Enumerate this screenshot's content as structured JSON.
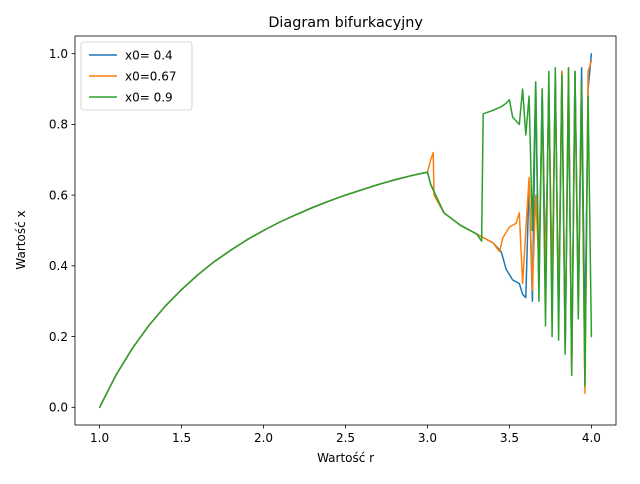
{
  "chart_data": {
    "type": "line",
    "title": "Diagram bifurkacyjny",
    "xlabel": "Wartość r",
    "ylabel": "Wartość x",
    "xlim": [
      0.85,
      4.15
    ],
    "ylim": [
      -0.05,
      1.05
    ],
    "xticks": [
      1.0,
      1.5,
      2.0,
      2.5,
      3.0,
      3.5,
      4.0
    ],
    "xtick_labels": [
      "1.0",
      "1.5",
      "2.0",
      "2.5",
      "3.0",
      "3.5",
      "4.0"
    ],
    "yticks": [
      0.0,
      0.2,
      0.4,
      0.6,
      0.8,
      1.0
    ],
    "ytick_labels": [
      "0.0",
      "0.2",
      "0.4",
      "0.6",
      "0.8",
      "1.0"
    ],
    "grid": false,
    "legend_position": "upper-left",
    "series": [
      {
        "name": "x0= 0.4",
        "color": "#1f77b4",
        "x": [
          1.0,
          1.1,
          1.2,
          1.3,
          1.4,
          1.5,
          1.6,
          1.7,
          1.8,
          1.9,
          2.0,
          2.1,
          2.2,
          2.3,
          2.4,
          2.5,
          2.6,
          2.7,
          2.8,
          2.9,
          3.0,
          3.02,
          3.1,
          3.2,
          3.3,
          3.4,
          3.45,
          3.48,
          3.52,
          3.56,
          3.58,
          3.6,
          3.62,
          3.64,
          3.66,
          3.68,
          3.7,
          3.72,
          3.74,
          3.76,
          3.78,
          3.8,
          3.82,
          3.84,
          3.86,
          3.88,
          3.9,
          3.92,
          3.94,
          3.96,
          3.98,
          4.0
        ],
        "y": [
          0.0,
          0.091,
          0.167,
          0.231,
          0.286,
          0.333,
          0.375,
          0.412,
          0.444,
          0.474,
          0.5,
          0.524,
          0.545,
          0.565,
          0.583,
          0.6,
          0.615,
          0.63,
          0.643,
          0.655,
          0.665,
          0.63,
          0.55,
          0.515,
          0.49,
          0.465,
          0.44,
          0.39,
          0.36,
          0.35,
          0.32,
          0.31,
          0.64,
          0.3,
          0.92,
          0.35,
          0.9,
          0.4,
          0.88,
          0.33,
          0.93,
          0.26,
          0.95,
          0.16,
          0.9,
          0.12,
          0.95,
          0.3,
          0.96,
          0.2,
          0.9,
          1.0
        ]
      },
      {
        "name": "x0=0.67",
        "color": "#ff7f0e",
        "x": [
          1.0,
          1.1,
          1.2,
          1.3,
          1.4,
          1.5,
          1.6,
          1.7,
          1.8,
          1.9,
          2.0,
          2.1,
          2.2,
          2.3,
          2.4,
          2.5,
          2.6,
          2.7,
          2.8,
          2.9,
          3.0,
          3.02,
          3.035,
          3.04,
          3.1,
          3.2,
          3.3,
          3.4,
          3.44,
          3.46,
          3.5,
          3.54,
          3.56,
          3.58,
          3.6,
          3.62,
          3.64,
          3.66,
          3.68,
          3.7,
          3.72,
          3.74,
          3.76,
          3.78,
          3.8,
          3.82,
          3.84,
          3.86,
          3.88,
          3.9,
          3.92,
          3.94,
          3.96,
          3.98,
          4.0
        ],
        "y": [
          0.0,
          0.091,
          0.167,
          0.231,
          0.286,
          0.333,
          0.375,
          0.412,
          0.444,
          0.474,
          0.5,
          0.524,
          0.545,
          0.565,
          0.583,
          0.6,
          0.615,
          0.63,
          0.643,
          0.655,
          0.665,
          0.7,
          0.72,
          0.6,
          0.55,
          0.515,
          0.49,
          0.465,
          0.44,
          0.48,
          0.51,
          0.52,
          0.55,
          0.35,
          0.5,
          0.65,
          0.33,
          0.6,
          0.4,
          0.85,
          0.37,
          0.9,
          0.35,
          0.92,
          0.26,
          0.95,
          0.18,
          0.96,
          0.09,
          0.93,
          0.3,
          0.9,
          0.04,
          0.95,
          0.98
        ]
      },
      {
        "name": "x0= 0.9",
        "color": "#2ca02c",
        "x": [
          1.0,
          1.1,
          1.2,
          1.3,
          1.4,
          1.5,
          1.6,
          1.7,
          1.8,
          1.9,
          2.0,
          2.1,
          2.2,
          2.3,
          2.4,
          2.5,
          2.6,
          2.7,
          2.8,
          2.9,
          3.0,
          3.02,
          3.1,
          3.2,
          3.3,
          3.33,
          3.34,
          3.4,
          3.45,
          3.48,
          3.5,
          3.52,
          3.56,
          3.58,
          3.6,
          3.62,
          3.64,
          3.66,
          3.68,
          3.7,
          3.72,
          3.74,
          3.76,
          3.78,
          3.8,
          3.82,
          3.84,
          3.86,
          3.88,
          3.9,
          3.92,
          3.94,
          3.96,
          3.98,
          4.0
        ],
        "y": [
          0.0,
          0.091,
          0.167,
          0.231,
          0.286,
          0.333,
          0.375,
          0.412,
          0.444,
          0.474,
          0.5,
          0.524,
          0.545,
          0.565,
          0.583,
          0.6,
          0.615,
          0.63,
          0.643,
          0.655,
          0.665,
          0.63,
          0.55,
          0.515,
          0.49,
          0.47,
          0.83,
          0.84,
          0.85,
          0.86,
          0.87,
          0.82,
          0.8,
          0.9,
          0.77,
          0.88,
          0.5,
          0.92,
          0.3,
          0.9,
          0.23,
          0.95,
          0.2,
          0.96,
          0.19,
          0.94,
          0.15,
          0.96,
          0.09,
          0.95,
          0.25,
          0.92,
          0.06,
          0.88,
          0.2
        ]
      }
    ]
  }
}
